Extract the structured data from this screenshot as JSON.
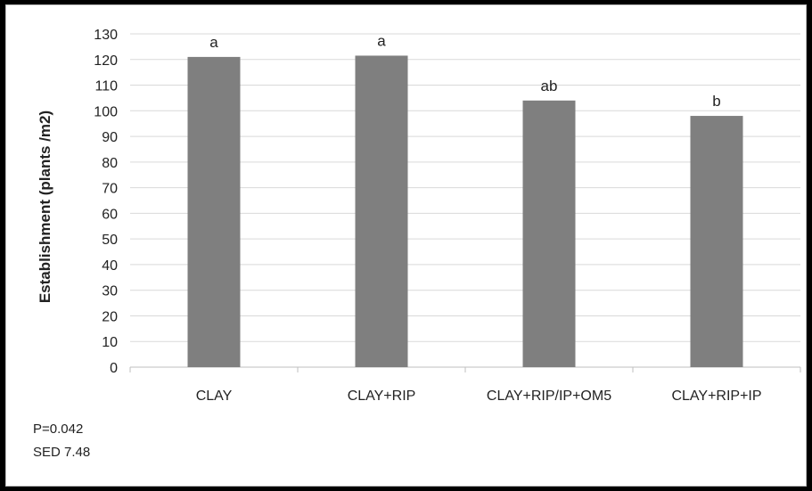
{
  "chart_data": {
    "type": "bar",
    "categories": [
      "CLAY",
      "CLAY+RIP",
      "CLAY+RIP/IP+OM5",
      "CLAY+RIP+IP"
    ],
    "values": [
      121,
      121.5,
      104,
      98
    ],
    "significance_letters": [
      "a",
      "a",
      "ab",
      "b"
    ],
    "title": "",
    "xlabel": "",
    "ylabel": "Establishment (plants /m2)",
    "ylim": [
      0,
      130
    ],
    "yticks": [
      0,
      10,
      20,
      30,
      40,
      50,
      60,
      70,
      80,
      90,
      100,
      110,
      120,
      130
    ],
    "grid": true,
    "legend": "none"
  },
  "colors": {
    "bar": "#7f7f7f",
    "grid": "#d9d9d9",
    "text": "#222222"
  },
  "notes": {
    "p_value": "P=0.042",
    "sed": "SED 7.48"
  }
}
